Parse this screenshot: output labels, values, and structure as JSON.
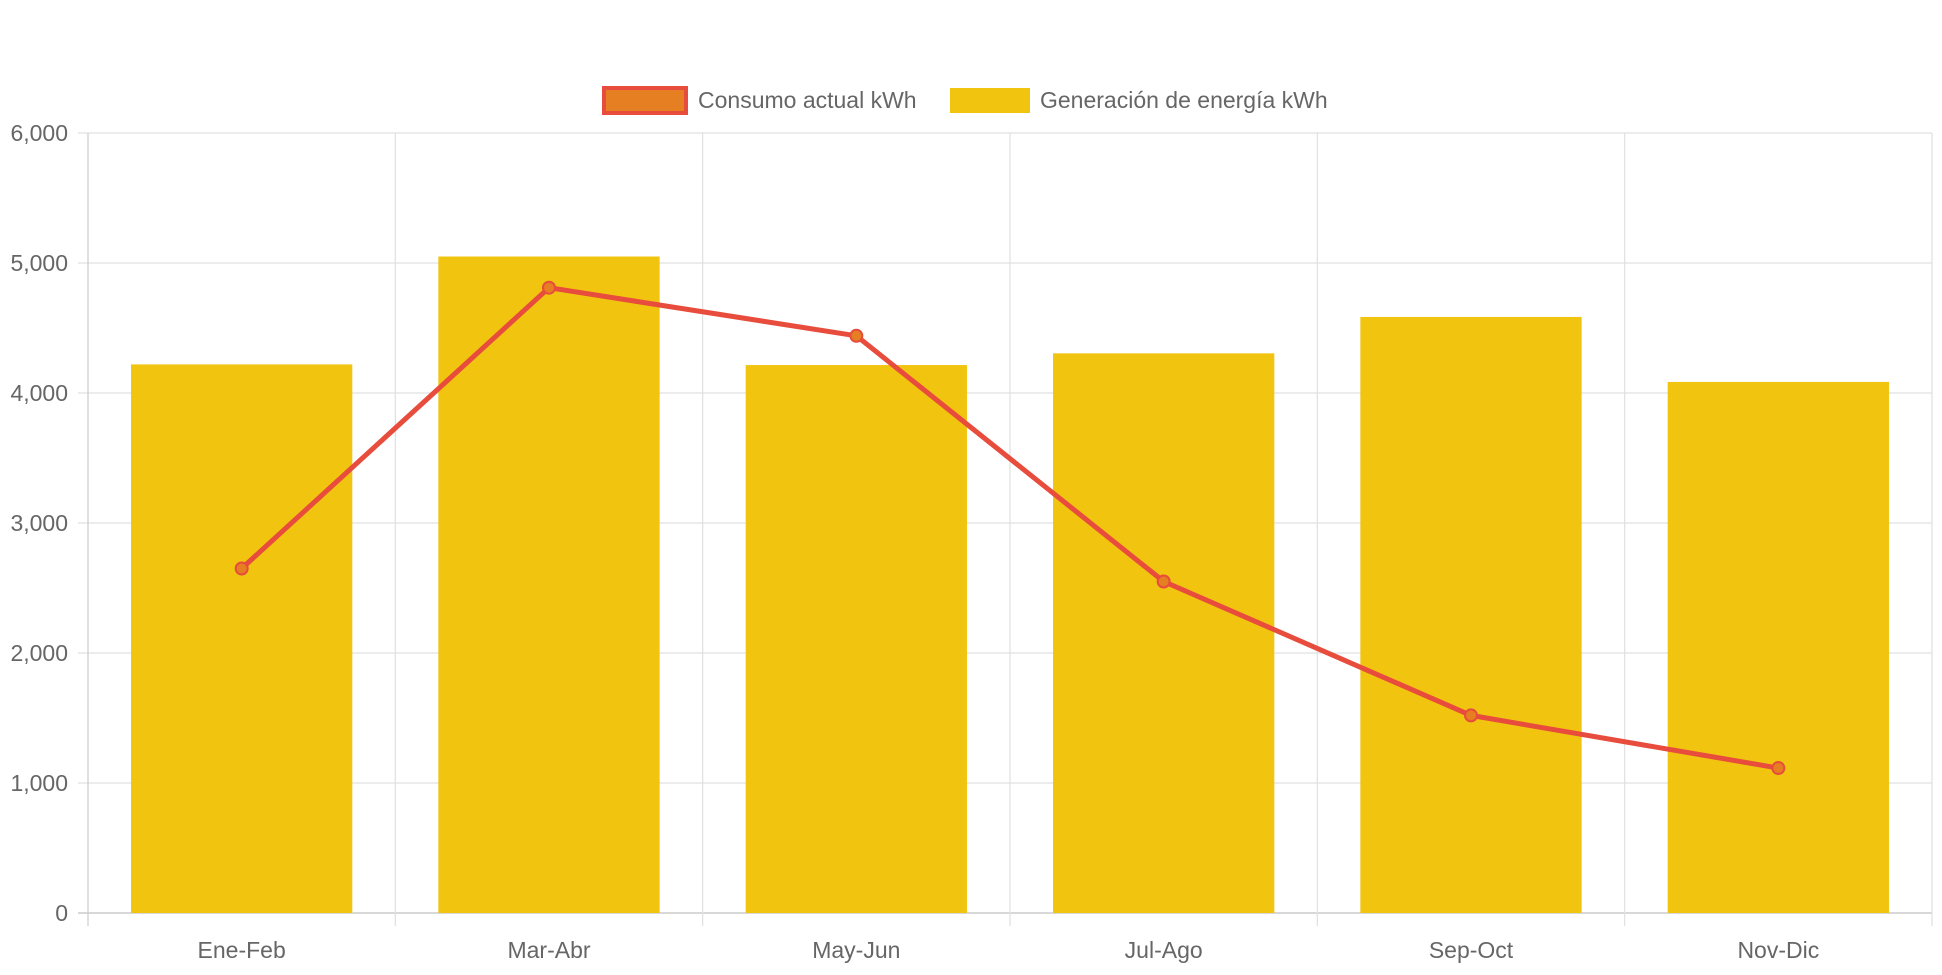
{
  "chart_data": {
    "type": "bar",
    "categories": [
      "Ene-Feb",
      "Mar-Abr",
      "May-Jun",
      "Jul-Ago",
      "Sep-Oct",
      "Nov-Dic"
    ],
    "series": [
      {
        "name": "Consumo actual kWh",
        "type": "line",
        "values": [
          2650,
          4810,
          4440,
          2550,
          1520,
          1115
        ],
        "color": "#e74c3c",
        "point_fill": "#e67e22"
      },
      {
        "name": "Generación de energía kWh",
        "type": "bar",
        "values": [
          4220,
          5050,
          4215,
          4305,
          4585,
          4085
        ],
        "color": "#f1c40f"
      }
    ],
    "y_ticks": [
      "0",
      "1,000",
      "2,000",
      "3,000",
      "4,000",
      "5,000",
      "6,000"
    ],
    "ylim": [
      0,
      6000
    ],
    "grid": true,
    "legend_position": "top-center",
    "colors": {
      "grid": "#e0e0e0",
      "axis": "#cccccc",
      "tick_text": "#666666",
      "legend_text": "#666666"
    }
  }
}
